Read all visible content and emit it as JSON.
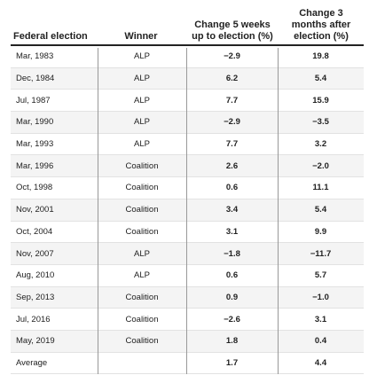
{
  "headers": {
    "election": "Federal election",
    "winner": "Winner",
    "change5": [
      "Change 5 weeks",
      "up to election (%)"
    ],
    "change3": [
      "Change 3",
      "months after",
      "election (%)"
    ]
  },
  "rows": [
    {
      "election": "Mar, 1983",
      "winner": "ALP",
      "change5": "−2.9",
      "change3": "19.8"
    },
    {
      "election": "Dec, 1984",
      "winner": "ALP",
      "change5": "6.2",
      "change3": "5.4"
    },
    {
      "election": "Jul, 1987",
      "winner": "ALP",
      "change5": "7.7",
      "change3": "15.9"
    },
    {
      "election": "Mar, 1990",
      "winner": "ALP",
      "change5": "−2.9",
      "change3": "−3.5"
    },
    {
      "election": "Mar, 1993",
      "winner": "ALP",
      "change5": "7.7",
      "change3": "3.2"
    },
    {
      "election": "Mar, 1996",
      "winner": "Coalition",
      "change5": "2.6",
      "change3": "−2.0"
    },
    {
      "election": "Oct, 1998",
      "winner": "Coalition",
      "change5": "0.6",
      "change3": "11.1"
    },
    {
      "election": "Nov, 2001",
      "winner": "Coalition",
      "change5": "3.4",
      "change3": "5.4"
    },
    {
      "election": "Oct, 2004",
      "winner": "Coalition",
      "change5": "3.1",
      "change3": "9.9"
    },
    {
      "election": "Nov, 2007",
      "winner": "ALP",
      "change5": "−1.8",
      "change3": "−11.7"
    },
    {
      "election": "Aug, 2010",
      "winner": "ALP",
      "change5": "0.6",
      "change3": "5.7"
    },
    {
      "election": "Sep, 2013",
      "winner": "Coalition",
      "change5": "0.9",
      "change3": "−1.0"
    },
    {
      "election": "Jul, 2016",
      "winner": "Coalition",
      "change5": "−2.6",
      "change3": "3.1"
    },
    {
      "election": "May, 2019",
      "winner": "Coalition",
      "change5": "1.8",
      "change3": "0.4"
    },
    {
      "election": "Average",
      "winner": "",
      "change5": "1.7",
      "change3": "4.4"
    }
  ]
}
